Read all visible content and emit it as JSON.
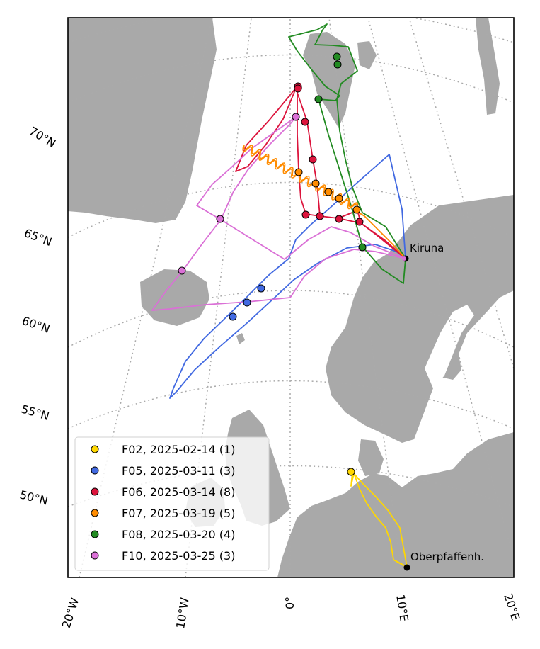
{
  "map": {
    "projection": "polar-stereographic",
    "land_color": "#a9a9a9",
    "ocean_color": "#ffffff",
    "graticule": true,
    "lat_labels": [
      "70°N",
      "65°N",
      "60°N",
      "55°N",
      "50°N"
    ],
    "lon_labels": [
      "20°W",
      "10°W",
      "0°",
      "10°E",
      "20°E"
    ],
    "sites": [
      {
        "name": "Kiruna",
        "lat": 67.82,
        "lon": 20.34
      },
      {
        "name": "Oberpfaffenh.",
        "lat": 48.08,
        "lon": 11.28
      }
    ]
  },
  "legend": {
    "placement": "lower-left",
    "entries": [
      {
        "label": "F02, 2025-02-14 (1)",
        "color": "#ffd700"
      },
      {
        "label": "F05, 2025-03-11 (3)",
        "color": "#4169e1"
      },
      {
        "label": "F06, 2025-03-14 (8)",
        "color": "#dc143c"
      },
      {
        "label": "F07, 2025-03-19 (5)",
        "color": "#ff8c00"
      },
      {
        "label": "F08, 2025-03-20 (4)",
        "color": "#228b22"
      },
      {
        "label": "F10, 2025-03-25 (3)",
        "color": "#da70d6"
      }
    ]
  }
}
